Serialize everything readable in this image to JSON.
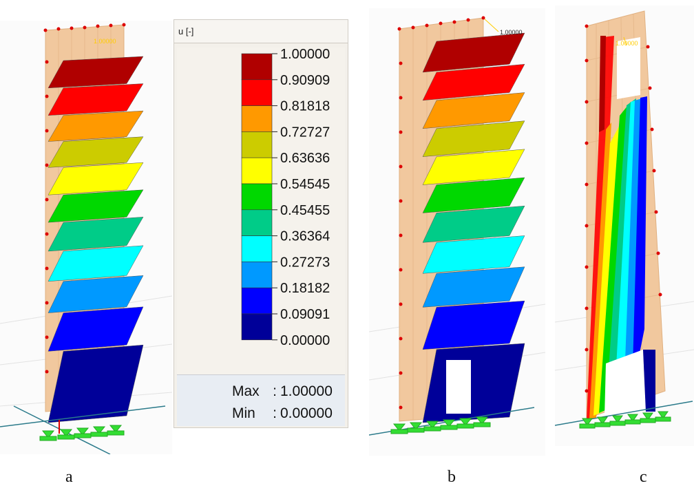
{
  "legend": {
    "title": "u [-]",
    "levels": [
      "1.00000",
      "0.90909",
      "0.81818",
      "0.72727",
      "0.63636",
      "0.54545",
      "0.45455",
      "0.36364",
      "0.27273",
      "0.18182",
      "0.09091",
      "0.00000"
    ],
    "band_colors": [
      "#b00000",
      "#ff0000",
      "#ff9900",
      "#cccc00",
      "#ffff00",
      "#00d800",
      "#00cc88",
      "#00ffff",
      "#0099ff",
      "#0000ff",
      "#000099"
    ],
    "max_label": "Max",
    "max_value": "1.00000",
    "min_label": "Min",
    "min_value": "0.00000",
    "separator": ":"
  },
  "panels": {
    "a": {
      "caption": "a",
      "max_tag": "1.00000"
    },
    "b": {
      "caption": "b",
      "max_tag": "1.00000"
    },
    "c": {
      "caption": "c",
      "max_tag": "1.00000"
    }
  }
}
